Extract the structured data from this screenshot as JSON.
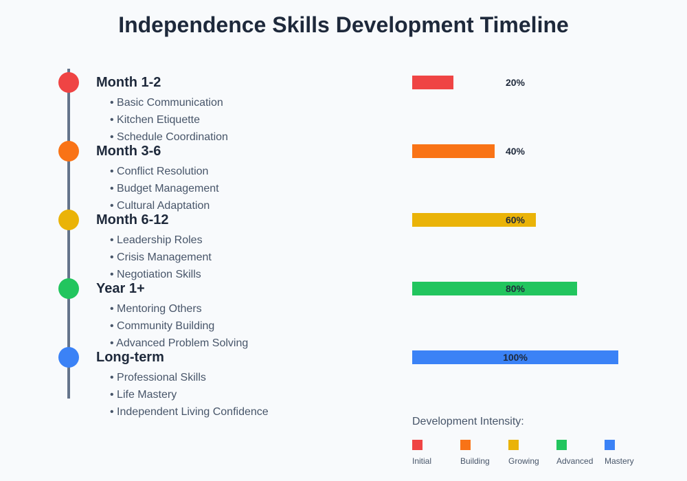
{
  "title": "Independence Skills Development Timeline",
  "stages": [
    {
      "label": "Month 1-2",
      "color": "#ef4444",
      "skills": [
        "Basic Communication",
        "Kitchen Etiquette",
        "Schedule Coordination"
      ],
      "percent": 20,
      "percent_label": "20%"
    },
    {
      "label": "Month 3-6",
      "color": "#f97316",
      "skills": [
        "Conflict Resolution",
        "Budget Management",
        "Cultural Adaptation"
      ],
      "percent": 40,
      "percent_label": "40%"
    },
    {
      "label": "Month 6-12",
      "color": "#eab308",
      "skills": [
        "Leadership Roles",
        "Crisis Management",
        "Negotiation Skills"
      ],
      "percent": 60,
      "percent_label": "60%"
    },
    {
      "label": "Year 1+",
      "color": "#22c55e",
      "skills": [
        "Mentoring Others",
        "Community Building",
        "Advanced Problem Solving"
      ],
      "percent": 80,
      "percent_label": "80%"
    },
    {
      "label": "Long-term",
      "color": "#3b82f6",
      "skills": [
        "Professional Skills",
        "Life Mastery",
        "Independent Living Confidence"
      ],
      "percent": 100,
      "percent_label": "100%"
    }
  ],
  "legend": {
    "title": "Development Intensity:",
    "items": [
      {
        "label": "Initial",
        "color": "#ef4444"
      },
      {
        "label": "Building",
        "color": "#f97316"
      },
      {
        "label": "Growing",
        "color": "#eab308"
      },
      {
        "label": "Advanced",
        "color": "#22c55e"
      },
      {
        "label": "Mastery",
        "color": "#3b82f6"
      }
    ]
  },
  "bullet": "•"
}
